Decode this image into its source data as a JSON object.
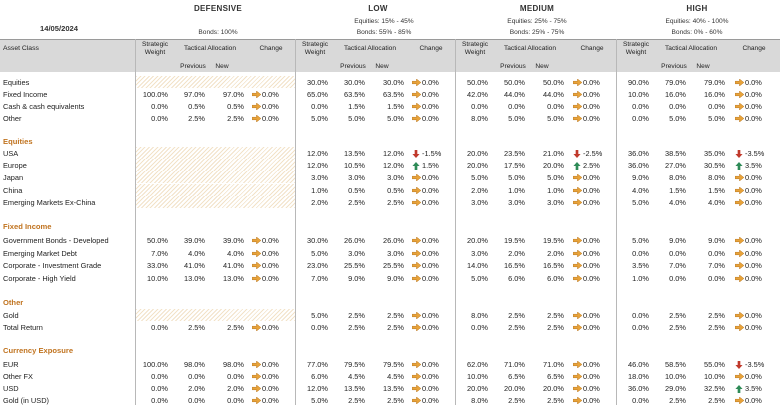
{
  "date": "14/05/2024",
  "colors": {
    "accent": "#c0731f",
    "up": "#2e8b57",
    "down": "#c0392b",
    "flat": "#e8a33a"
  },
  "bands": [
    {
      "title": "DEFENSIVE",
      "sub1": "",
      "sub2": "Bonds: 100%"
    },
    {
      "title": "LOW",
      "sub1": "Equities: 15% - 45%",
      "sub2": "Bonds: 55% - 85%"
    },
    {
      "title": "MEDIUM",
      "sub1": "Equities: 25% - 75%",
      "sub2": "Bonds: 25% - 75%"
    },
    {
      "title": "HIGH",
      "sub1": "Equities: 40% - 100%",
      "sub2": "Bonds: 0% - 60%"
    }
  ],
  "headers": {
    "asset_class": "Asset Class",
    "strategic": "Strategic",
    "weight": "Weight",
    "tactical": "Tactical Allocation",
    "change": "Change",
    "previous": "Previous",
    "new": "New"
  },
  "sections": [
    {
      "title": "",
      "rows": [
        {
          "name": "Equities",
          "cells": [
            [
              "",
              "",
              "",
              "",
              "h"
            ],
            [
              "30.0%",
              "30.0%",
              "30.0%",
              "0.0%",
              "flat"
            ],
            [
              "50.0%",
              "50.0%",
              "50.0%",
              "0.0%",
              "flat"
            ],
            [
              "90.0%",
              "79.0%",
              "79.0%",
              "0.0%",
              "flat"
            ]
          ]
        },
        {
          "name": "Fixed Income",
          "cells": [
            [
              "100.0%",
              "97.0%",
              "97.0%",
              "0.0%",
              "flat"
            ],
            [
              "65.0%",
              "63.5%",
              "63.5%",
              "0.0%",
              "flat"
            ],
            [
              "42.0%",
              "44.0%",
              "44.0%",
              "0.0%",
              "flat"
            ],
            [
              "10.0%",
              "16.0%",
              "16.0%",
              "0.0%",
              "flat"
            ]
          ]
        },
        {
          "name": "Cash & cash equivalents",
          "cells": [
            [
              "0.0%",
              "0.5%",
              "0.5%",
              "0.0%",
              "flat"
            ],
            [
              "0.0%",
              "1.5%",
              "1.5%",
              "0.0%",
              "flat"
            ],
            [
              "0.0%",
              "0.0%",
              "0.0%",
              "0.0%",
              "flat"
            ],
            [
              "0.0%",
              "0.0%",
              "0.0%",
              "0.0%",
              "flat"
            ]
          ]
        },
        {
          "name": "Other",
          "cells": [
            [
              "0.0%",
              "2.5%",
              "2.5%",
              "0.0%",
              "flat"
            ],
            [
              "5.0%",
              "5.0%",
              "5.0%",
              "0.0%",
              "flat"
            ],
            [
              "8.0%",
              "5.0%",
              "5.0%",
              "0.0%",
              "flat"
            ],
            [
              "0.0%",
              "5.0%",
              "5.0%",
              "0.0%",
              "flat"
            ]
          ]
        }
      ]
    },
    {
      "title": "Equities",
      "rows": [
        {
          "name": "USA",
          "cells": [
            [
              "",
              "",
              "",
              "",
              "h"
            ],
            [
              "12.0%",
              "13.5%",
              "12.0%",
              "-1.5%",
              "down"
            ],
            [
              "20.0%",
              "23.5%",
              "21.0%",
              "-2.5%",
              "down"
            ],
            [
              "36.0%",
              "38.5%",
              "35.0%",
              "-3.5%",
              "down"
            ]
          ]
        },
        {
          "name": "Europe",
          "cells": [
            [
              "",
              "",
              "",
              "",
              "h"
            ],
            [
              "12.0%",
              "10.5%",
              "12.0%",
              "1.5%",
              "up"
            ],
            [
              "20.0%",
              "17.5%",
              "20.0%",
              "2.5%",
              "up"
            ],
            [
              "36.0%",
              "27.0%",
              "30.5%",
              "3.5%",
              "up"
            ]
          ]
        },
        {
          "name": "Japan",
          "cells": [
            [
              "",
              "",
              "",
              "",
              "h"
            ],
            [
              "3.0%",
              "3.0%",
              "3.0%",
              "0.0%",
              "flat"
            ],
            [
              "5.0%",
              "5.0%",
              "5.0%",
              "0.0%",
              "flat"
            ],
            [
              "9.0%",
              "8.0%",
              "8.0%",
              "0.0%",
              "flat"
            ]
          ]
        },
        {
          "name": "China",
          "cells": [
            [
              "",
              "",
              "",
              "",
              "h"
            ],
            [
              "1.0%",
              "0.5%",
              "0.5%",
              "0.0%",
              "flat"
            ],
            [
              "2.0%",
              "1.0%",
              "1.0%",
              "0.0%",
              "flat"
            ],
            [
              "4.0%",
              "1.5%",
              "1.5%",
              "0.0%",
              "flat"
            ]
          ]
        },
        {
          "name": "Emerging Markets Ex-China",
          "cells": [
            [
              "",
              "",
              "",
              "",
              "h"
            ],
            [
              "2.0%",
              "2.5%",
              "2.5%",
              "0.0%",
              "flat"
            ],
            [
              "3.0%",
              "3.0%",
              "3.0%",
              "0.0%",
              "flat"
            ],
            [
              "5.0%",
              "4.0%",
              "4.0%",
              "0.0%",
              "flat"
            ]
          ]
        }
      ]
    },
    {
      "title": "Fixed Income",
      "rows": [
        {
          "name": "Government Bonds - Developed",
          "cells": [
            [
              "50.0%",
              "39.0%",
              "39.0%",
              "0.0%",
              "flat"
            ],
            [
              "30.0%",
              "26.0%",
              "26.0%",
              "0.0%",
              "flat"
            ],
            [
              "20.0%",
              "19.5%",
              "19.5%",
              "0.0%",
              "flat"
            ],
            [
              "5.0%",
              "9.0%",
              "9.0%",
              "0.0%",
              "flat"
            ]
          ]
        },
        {
          "name": "Emerging Market Debt",
          "cells": [
            [
              "7.0%",
              "4.0%",
              "4.0%",
              "0.0%",
              "flat"
            ],
            [
              "5.0%",
              "3.0%",
              "3.0%",
              "0.0%",
              "flat"
            ],
            [
              "3.0%",
              "2.0%",
              "2.0%",
              "0.0%",
              "flat"
            ],
            [
              "0.0%",
              "0.0%",
              "0.0%",
              "0.0%",
              "flat"
            ]
          ]
        },
        {
          "name": "Corporate - Investment Grade",
          "cells": [
            [
              "33.0%",
              "41.0%",
              "41.0%",
              "0.0%",
              "flat"
            ],
            [
              "23.0%",
              "25.5%",
              "25.5%",
              "0.0%",
              "flat"
            ],
            [
              "14.0%",
              "16.5%",
              "16.5%",
              "0.0%",
              "flat"
            ],
            [
              "3.5%",
              "7.0%",
              "7.0%",
              "0.0%",
              "flat"
            ]
          ]
        },
        {
          "name": "Corporate - High Yield",
          "cells": [
            [
              "10.0%",
              "13.0%",
              "13.0%",
              "0.0%",
              "flat"
            ],
            [
              "7.0%",
              "9.0%",
              "9.0%",
              "0.0%",
              "flat"
            ],
            [
              "5.0%",
              "6.0%",
              "6.0%",
              "0.0%",
              "flat"
            ],
            [
              "1.0%",
              "0.0%",
              "0.0%",
              "0.0%",
              "flat"
            ]
          ]
        }
      ]
    },
    {
      "title": "Other",
      "rows": [
        {
          "name": "Gold",
          "cells": [
            [
              "",
              "",
              "",
              "",
              "h"
            ],
            [
              "5.0%",
              "2.5%",
              "2.5%",
              "0.0%",
              "flat"
            ],
            [
              "8.0%",
              "2.5%",
              "2.5%",
              "0.0%",
              "flat"
            ],
            [
              "0.0%",
              "2.5%",
              "2.5%",
              "0.0%",
              "flat"
            ]
          ]
        },
        {
          "name": "Total Return",
          "cells": [
            [
              "0.0%",
              "2.5%",
              "2.5%",
              "0.0%",
              "flat"
            ],
            [
              "0.0%",
              "2.5%",
              "2.5%",
              "0.0%",
              "flat"
            ],
            [
              "0.0%",
              "2.5%",
              "2.5%",
              "0.0%",
              "flat"
            ],
            [
              "0.0%",
              "2.5%",
              "2.5%",
              "0.0%",
              "flat"
            ]
          ]
        }
      ]
    },
    {
      "title": "Currency Exposure",
      "rows": [
        {
          "name": "EUR",
          "cells": [
            [
              "100.0%",
              "98.0%",
              "98.0%",
              "0.0%",
              "flat"
            ],
            [
              "77.0%",
              "79.5%",
              "79.5%",
              "0.0%",
              "flat"
            ],
            [
              "62.0%",
              "71.0%",
              "71.0%",
              "0.0%",
              "flat"
            ],
            [
              "46.0%",
              "58.5%",
              "55.0%",
              "-3.5%",
              "down"
            ]
          ]
        },
        {
          "name": "Other FX",
          "cells": [
            [
              "0.0%",
              "0.0%",
              "0.0%",
              "0.0%",
              "flat"
            ],
            [
              "6.0%",
              "4.5%",
              "4.5%",
              "0.0%",
              "flat"
            ],
            [
              "10.0%",
              "6.5%",
              "6.5%",
              "0.0%",
              "flat"
            ],
            [
              "18.0%",
              "10.0%",
              "10.0%",
              "0.0%",
              "flat"
            ]
          ]
        },
        {
          "name": "USD",
          "cells": [
            [
              "0.0%",
              "2.0%",
              "2.0%",
              "0.0%",
              "flat"
            ],
            [
              "12.0%",
              "13.5%",
              "13.5%",
              "0.0%",
              "flat"
            ],
            [
              "20.0%",
              "20.0%",
              "20.0%",
              "0.0%",
              "flat"
            ],
            [
              "36.0%",
              "29.0%",
              "32.5%",
              "3.5%",
              "up"
            ]
          ]
        },
        {
          "name": "Gold (in USD)",
          "cells": [
            [
              "0.0%",
              "0.0%",
              "0.0%",
              "0.0%",
              "flat"
            ],
            [
              "5.0%",
              "2.5%",
              "2.5%",
              "0.0%",
              "flat"
            ],
            [
              "8.0%",
              "2.5%",
              "2.5%",
              "0.0%",
              "flat"
            ],
            [
              "0.0%",
              "2.5%",
              "2.5%",
              "0.0%",
              "flat"
            ]
          ]
        }
      ]
    }
  ]
}
